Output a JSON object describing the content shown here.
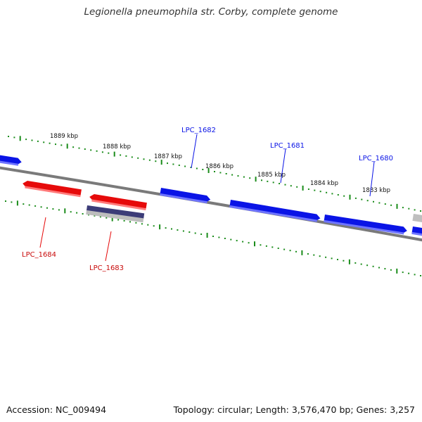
{
  "header": {
    "title": "Legionella pneumophila str. Corby, complete genome"
  },
  "footer": {
    "accession": "Accession: NC_009494",
    "summary": "Topology: circular; Length: 3,576,470 bp; Genes: 3,257"
  },
  "colors": {
    "forward_gene": "#0a14e6",
    "reverse_gene": "#e60a0a",
    "pseudo_gene": "#3c3c78",
    "backbone": "#7a7a7a",
    "ticks": "#1a8c1a",
    "other_feature": "#bfbfbf"
  },
  "ruler": {
    "labels": [
      "1889 kbp",
      "1888 kbp",
      "1887 kbp",
      "1886 kbp",
      "1885 kbp",
      "1884 kbp",
      "1883 kbp"
    ]
  },
  "genes": {
    "labels": [
      {
        "name": "LPC_1682",
        "strand": "forward"
      },
      {
        "name": "LPC_1681",
        "strand": "forward"
      },
      {
        "name": "LPC_1680",
        "strand": "forward"
      },
      {
        "name": "LPC_1684",
        "strand": "reverse"
      },
      {
        "name": "LPC_1683",
        "strand": "reverse"
      }
    ]
  }
}
